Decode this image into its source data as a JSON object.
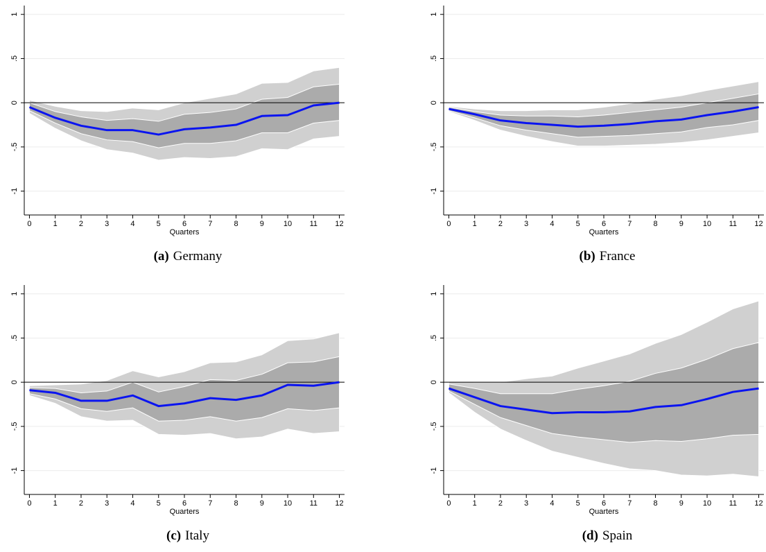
{
  "chart_data": [
    {
      "type": "line",
      "label": "(a)",
      "title": "Germany",
      "xlabel": "Quarters",
      "x": [
        0,
        1,
        2,
        3,
        4,
        5,
        6,
        7,
        8,
        9,
        10,
        11,
        12
      ],
      "xlim": [
        -0.2,
        12.2
      ],
      "xticks": [
        0,
        1,
        2,
        3,
        4,
        5,
        6,
        7,
        8,
        9,
        10,
        11,
        12
      ],
      "ylim": [
        -1.27,
        1.1
      ],
      "yticks": [
        -1,
        {
          "value": -0.5,
          "label": "-.5"
        },
        0,
        {
          "value": 0.5,
          "label": ".5"
        },
        1
      ],
      "grid": true,
      "hline": 0,
      "bands": [
        {
          "color": "#d0d0d0",
          "upper": [
            0.03,
            -0.04,
            -0.09,
            -0.1,
            -0.06,
            -0.08,
            0.0,
            0.05,
            0.1,
            0.22,
            0.23,
            0.36,
            0.4
          ],
          "lower": [
            -0.12,
            -0.29,
            -0.43,
            -0.53,
            -0.57,
            -0.65,
            -0.62,
            -0.63,
            -0.61,
            -0.52,
            -0.53,
            -0.41,
            -0.38
          ]
        },
        {
          "color": "#ababab",
          "upper": [
            0.0,
            -0.1,
            -0.16,
            -0.2,
            -0.18,
            -0.21,
            -0.13,
            -0.11,
            -0.07,
            0.04,
            0.06,
            0.18,
            0.21
          ],
          "lower": [
            -0.09,
            -0.23,
            -0.35,
            -0.42,
            -0.44,
            -0.51,
            -0.46,
            -0.46,
            -0.43,
            -0.34,
            -0.34,
            -0.23,
            -0.2
          ]
        }
      ],
      "series": [
        {
          "color": "#0a14f0",
          "values": [
            -0.05,
            -0.17,
            -0.26,
            -0.31,
            -0.31,
            -0.36,
            -0.3,
            -0.28,
            -0.25,
            -0.15,
            -0.14,
            -0.03,
            0.0
          ]
        }
      ]
    },
    {
      "type": "line",
      "label": "(b)",
      "title": "France",
      "xlabel": "Quarters",
      "x": [
        0,
        1,
        2,
        3,
        4,
        5,
        6,
        7,
        8,
        9,
        10,
        11,
        12
      ],
      "xlim": [
        -0.2,
        12.2
      ],
      "xticks": [
        0,
        1,
        2,
        3,
        4,
        5,
        6,
        7,
        8,
        9,
        10,
        11,
        12
      ],
      "ylim": [
        -1.27,
        1.1
      ],
      "yticks": [
        -1,
        {
          "value": -0.5,
          "label": "-.5"
        },
        0,
        {
          "value": 0.5,
          "label": ".5"
        },
        1
      ],
      "grid": true,
      "hline": 0,
      "bands": [
        {
          "color": "#d0d0d0",
          "upper": [
            -0.04,
            -0.07,
            -0.09,
            -0.09,
            -0.08,
            -0.08,
            -0.05,
            -0.01,
            0.04,
            0.08,
            0.14,
            0.19,
            0.24
          ],
          "lower": [
            -0.1,
            -0.2,
            -0.31,
            -0.38,
            -0.44,
            -0.49,
            -0.49,
            -0.48,
            -0.47,
            -0.45,
            -0.42,
            -0.38,
            -0.34
          ]
        },
        {
          "color": "#ababab",
          "upper": [
            -0.05,
            -0.1,
            -0.14,
            -0.15,
            -0.15,
            -0.16,
            -0.14,
            -0.11,
            -0.08,
            -0.05,
            0.0,
            0.05,
            0.1
          ],
          "lower": [
            -0.09,
            -0.17,
            -0.26,
            -0.31,
            -0.35,
            -0.39,
            -0.38,
            -0.37,
            -0.35,
            -0.33,
            -0.28,
            -0.25,
            -0.2
          ]
        }
      ],
      "series": [
        {
          "color": "#0a14f0",
          "values": [
            -0.07,
            -0.13,
            -0.2,
            -0.23,
            -0.25,
            -0.27,
            -0.26,
            -0.24,
            -0.21,
            -0.19,
            -0.14,
            -0.1,
            -0.05
          ]
        }
      ]
    },
    {
      "type": "line",
      "label": "(c)",
      "title": "Italy",
      "xlabel": "Quarters",
      "x": [
        0,
        1,
        2,
        3,
        4,
        5,
        6,
        7,
        8,
        9,
        10,
        11,
        12
      ],
      "xlim": [
        -0.2,
        12.2
      ],
      "xticks": [
        0,
        1,
        2,
        3,
        4,
        5,
        6,
        7,
        8,
        9,
        10,
        11,
        12
      ],
      "ylim": [
        -1.27,
        1.1
      ],
      "yticks": [
        -1,
        {
          "value": -0.5,
          "label": "-.5"
        },
        0,
        {
          "value": 0.5,
          "label": ".5"
        },
        1
      ],
      "grid": true,
      "hline": 0,
      "bands": [
        {
          "color": "#d0d0d0",
          "upper": [
            -0.04,
            -0.03,
            -0.02,
            0.02,
            0.13,
            0.06,
            0.12,
            0.22,
            0.23,
            0.31,
            0.47,
            0.49,
            0.56
          ],
          "lower": [
            -0.15,
            -0.24,
            -0.39,
            -0.44,
            -0.43,
            -0.59,
            -0.6,
            -0.58,
            -0.64,
            -0.62,
            -0.53,
            -0.58,
            -0.56
          ]
        },
        {
          "color": "#ababab",
          "upper": [
            -0.06,
            -0.07,
            -0.12,
            -0.1,
            0.0,
            -0.11,
            -0.05,
            0.03,
            0.02,
            0.09,
            0.22,
            0.23,
            0.29
          ],
          "lower": [
            -0.13,
            -0.19,
            -0.3,
            -0.33,
            -0.29,
            -0.44,
            -0.43,
            -0.39,
            -0.44,
            -0.4,
            -0.3,
            -0.32,
            -0.29
          ]
        }
      ],
      "series": [
        {
          "color": "#0a14f0",
          "values": [
            -0.09,
            -0.12,
            -0.21,
            -0.21,
            -0.15,
            -0.27,
            -0.24,
            -0.18,
            -0.2,
            -0.15,
            -0.03,
            -0.04,
            0.0
          ]
        }
      ]
    },
    {
      "type": "line",
      "label": "(d)",
      "title": "Spain",
      "xlabel": "Quarters",
      "x": [
        0,
        1,
        2,
        3,
        4,
        5,
        6,
        7,
        8,
        9,
        10,
        11,
        12
      ],
      "xlim": [
        -0.2,
        12.2
      ],
      "xticks": [
        0,
        1,
        2,
        3,
        4,
        5,
        6,
        7,
        8,
        9,
        10,
        11,
        12
      ],
      "ylim": [
        -1.27,
        1.1
      ],
      "yticks": [
        -1,
        {
          "value": -0.5,
          "label": "-.5"
        },
        0,
        {
          "value": 0.5,
          "label": ".5"
        },
        1
      ],
      "grid": true,
      "hline": 0,
      "bands": [
        {
          "color": "#d0d0d0",
          "upper": [
            0.01,
            0.0,
            0.0,
            0.04,
            0.07,
            0.16,
            0.24,
            0.32,
            0.44,
            0.54,
            0.68,
            0.83,
            0.92
          ],
          "lower": [
            -0.12,
            -0.34,
            -0.53,
            -0.66,
            -0.78,
            -0.85,
            -0.92,
            -0.98,
            -1.0,
            -1.05,
            -1.06,
            -1.04,
            -1.07
          ]
        },
        {
          "color": "#ababab",
          "upper": [
            -0.02,
            -0.07,
            -0.13,
            -0.13,
            -0.13,
            -0.08,
            -0.04,
            0.01,
            0.1,
            0.16,
            0.26,
            0.38,
            0.45
          ],
          "lower": [
            -0.1,
            -0.25,
            -0.4,
            -0.49,
            -0.58,
            -0.62,
            -0.65,
            -0.68,
            -0.66,
            -0.67,
            -0.64,
            -0.6,
            -0.59
          ]
        }
      ],
      "series": [
        {
          "color": "#0a14f0",
          "values": [
            -0.07,
            -0.17,
            -0.27,
            -0.31,
            -0.35,
            -0.34,
            -0.34,
            -0.33,
            -0.28,
            -0.26,
            -0.19,
            -0.11,
            -0.07
          ]
        }
      ]
    }
  ]
}
